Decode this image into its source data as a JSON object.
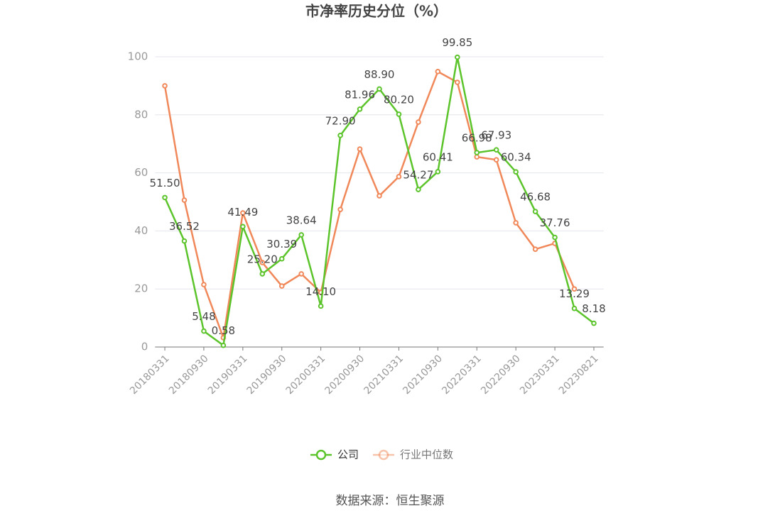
{
  "chart_data": {
    "type": "line",
    "title": "市净率历史分位（%）",
    "source": "数据来源：恒生聚源",
    "categories": [
      "20180331",
      null,
      "20180930",
      null,
      "20190331",
      null,
      "20190930",
      null,
      "20200331",
      null,
      "20200930",
      null,
      "20210331",
      null,
      "20210930",
      null,
      "20220331",
      null,
      "20220930",
      null,
      "20230331",
      null,
      "20230821"
    ],
    "series": [
      {
        "name": "公司",
        "color": "#5cc42b",
        "values": [
          51.5,
          36.52,
          5.48,
          0.58,
          41.49,
          25.2,
          30.39,
          38.64,
          14.1,
          72.9,
          81.96,
          88.9,
          80.2,
          54.27,
          60.41,
          99.85,
          66.98,
          67.93,
          60.34,
          46.68,
          37.76,
          13.29,
          8.18
        ],
        "value_labels": [
          "51.50",
          "36.52",
          "5.48",
          "0.58",
          "41.49",
          "25.20",
          "30.39",
          "38.64",
          "14.10",
          "72.90",
          "81.96",
          "88.90",
          "80.20",
          "54.27",
          "60.41",
          "99.85",
          "66.98",
          "67.93",
          "60.34",
          "46.68",
          "37.76",
          "13.29",
          "8.18"
        ]
      },
      {
        "name": "行业中位数",
        "color": "#f0885a",
        "values": [
          90.0,
          50.6,
          21.5,
          3.2,
          46.2,
          29.1,
          21.0,
          25.2,
          18.8,
          47.4,
          68.2,
          52.1,
          58.7,
          77.5,
          94.9,
          91.2,
          65.5,
          64.5,
          42.8,
          33.7,
          35.7,
          20.0,
          null
        ]
      }
    ],
    "ylim": [
      0,
      100
    ],
    "yticks": [
      0,
      20,
      40,
      60,
      80,
      100
    ],
    "grid": true
  }
}
